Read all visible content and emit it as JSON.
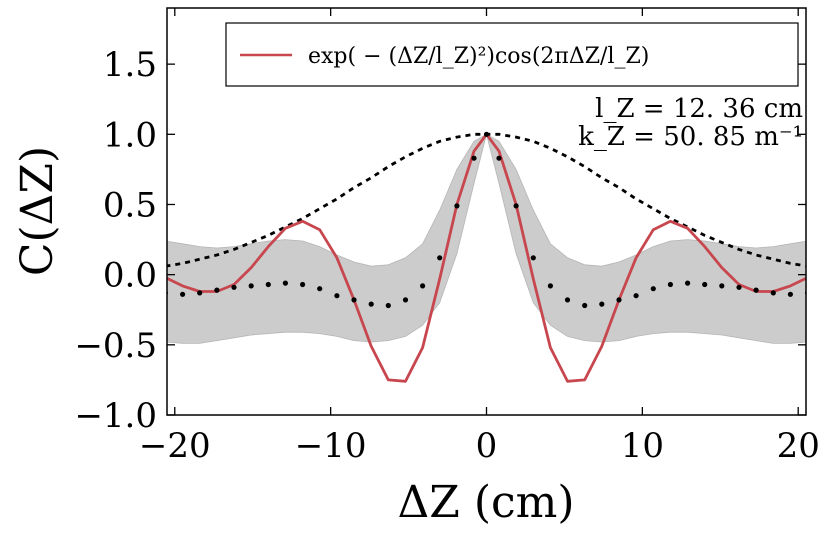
{
  "chart_data": {
    "type": "line",
    "title": "",
    "xlabel": "ΔZ (cm)",
    "ylabel": "C(ΔZ)",
    "xlim": [
      -20.5,
      20.5
    ],
    "ylim": [
      -1.0,
      1.9
    ],
    "xticks": [
      -20,
      -10,
      0,
      10,
      20
    ],
    "xtick_labels": [
      "−20",
      "−10",
      "0",
      "10",
      "20"
    ],
    "yticks": [
      -1.0,
      -0.5,
      0.0,
      0.5,
      1.0,
      1.5
    ],
    "ytick_labels": [
      "−1.0",
      "−0.5",
      "0.0",
      "0.5",
      "1.0",
      "1.5"
    ],
    "grid": false,
    "legend_position": "top-right",
    "annotations": [
      "l_Z = 12. 36 cm",
      "k_Z = 50. 85 m⁻¹"
    ],
    "colors": {
      "model": "#c8474f",
      "band": "#cccccc",
      "data_points": "#000000",
      "envelope": "#000000"
    },
    "series": [
      {
        "name": "exp( − (ΔZ/l_Z)²)cos(2πΔZ/l_Z)",
        "style": "solid",
        "x": [
          -20.6,
          -19.5,
          -18.4,
          -17.3,
          -16.2,
          -15.1,
          -14.0,
          -12.9,
          -11.8,
          -10.7,
          -9.6,
          -8.5,
          -7.4,
          -6.3,
          -5.2,
          -4.1,
          -3.0,
          -1.9,
          -0.8,
          0.0,
          0.8,
          1.9,
          3.0,
          4.1,
          5.2,
          6.3,
          7.4,
          8.5,
          9.6,
          10.7,
          11.8,
          12.9,
          14.0,
          15.1,
          16.2,
          17.3,
          18.4,
          19.5,
          20.6
        ],
        "y": [
          -0.02,
          -0.08,
          -0.12,
          -0.12,
          -0.07,
          0.05,
          0.2,
          0.33,
          0.38,
          0.32,
          0.12,
          -0.18,
          -0.51,
          -0.75,
          -0.76,
          -0.52,
          -0.03,
          0.5,
          0.88,
          1.0,
          0.88,
          0.5,
          -0.03,
          -0.52,
          -0.76,
          -0.75,
          -0.51,
          -0.18,
          0.12,
          0.32,
          0.38,
          0.33,
          0.2,
          0.05,
          -0.07,
          -0.12,
          -0.12,
          -0.08,
          -0.02
        ]
      },
      {
        "name": "",
        "style": "dotted-markers",
        "x": [
          -20.6,
          -19.5,
          -18.4,
          -17.3,
          -16.2,
          -15.1,
          -14.0,
          -12.9,
          -11.8,
          -10.7,
          -9.6,
          -8.5,
          -7.4,
          -6.3,
          -5.2,
          -4.1,
          -3.0,
          -1.9,
          -0.8,
          0.0,
          0.8,
          1.9,
          3.0,
          4.1,
          5.2,
          6.3,
          7.4,
          8.5,
          9.6,
          10.7,
          11.8,
          12.9,
          14.0,
          15.1,
          16.2,
          17.3,
          18.4,
          19.5,
          20.6
        ],
        "y": [
          -0.13,
          -0.14,
          -0.13,
          -0.11,
          -0.09,
          -0.08,
          -0.07,
          -0.06,
          -0.07,
          -0.1,
          -0.15,
          -0.18,
          -0.21,
          -0.22,
          -0.18,
          -0.08,
          0.12,
          0.49,
          0.83,
          1.0,
          0.83,
          0.49,
          0.12,
          -0.08,
          -0.18,
          -0.22,
          -0.21,
          -0.18,
          -0.15,
          -0.1,
          -0.07,
          -0.06,
          -0.07,
          -0.08,
          -0.09,
          -0.11,
          -0.13,
          -0.14,
          -0.13
        ]
      },
      {
        "name": "",
        "style": "dashed",
        "x": [
          -20.6,
          -19.5,
          -18.4,
          -17.3,
          -16.2,
          -15.1,
          -14.0,
          -12.9,
          -11.8,
          -10.7,
          -9.6,
          -8.5,
          -7.4,
          -6.3,
          -5.2,
          -4.1,
          -3.0,
          -1.9,
          -0.8,
          0.0,
          0.8,
          1.9,
          3.0,
          4.1,
          5.2,
          6.3,
          7.4,
          8.5,
          9.6,
          10.7,
          11.8,
          12.9,
          14.0,
          15.1,
          16.2,
          17.3,
          18.4,
          19.5,
          20.6
        ],
        "y": [
          0.06,
          0.08,
          0.11,
          0.14,
          0.18,
          0.23,
          0.28,
          0.34,
          0.4,
          0.47,
          0.54,
          0.62,
          0.69,
          0.77,
          0.84,
          0.9,
          0.95,
          0.98,
          1.0,
          1.0,
          1.0,
          0.98,
          0.95,
          0.9,
          0.84,
          0.77,
          0.69,
          0.62,
          0.54,
          0.47,
          0.4,
          0.34,
          0.28,
          0.23,
          0.18,
          0.14,
          0.11,
          0.08,
          0.06
        ]
      }
    ],
    "band": {
      "x": [
        -20.6,
        -19.5,
        -18.4,
        -17.3,
        -16.2,
        -15.1,
        -14.0,
        -12.9,
        -11.8,
        -10.7,
        -9.6,
        -8.5,
        -7.4,
        -6.3,
        -5.2,
        -4.1,
        -3.0,
        -1.9,
        -0.8,
        0.0,
        0.8,
        1.9,
        3.0,
        4.1,
        5.2,
        6.3,
        7.4,
        8.5,
        9.6,
        10.7,
        11.8,
        12.9,
        14.0,
        15.1,
        16.2,
        17.3,
        18.4,
        19.5,
        20.6
      ],
      "upper": [
        0.24,
        0.22,
        0.2,
        0.19,
        0.2,
        0.22,
        0.24,
        0.25,
        0.24,
        0.2,
        0.14,
        0.09,
        0.06,
        0.07,
        0.12,
        0.22,
        0.46,
        0.75,
        0.95,
        1.0,
        0.95,
        0.75,
        0.46,
        0.22,
        0.12,
        0.07,
        0.06,
        0.09,
        0.14,
        0.2,
        0.24,
        0.25,
        0.24,
        0.22,
        0.2,
        0.19,
        0.2,
        0.22,
        0.24
      ],
      "lower": [
        -0.48,
        -0.49,
        -0.49,
        -0.47,
        -0.45,
        -0.43,
        -0.42,
        -0.41,
        -0.41,
        -0.42,
        -0.44,
        -0.47,
        -0.48,
        -0.47,
        -0.44,
        -0.36,
        -0.2,
        0.15,
        0.65,
        1.0,
        0.65,
        0.15,
        -0.2,
        -0.36,
        -0.44,
        -0.47,
        -0.48,
        -0.47,
        -0.44,
        -0.42,
        -0.41,
        -0.41,
        -0.42,
        -0.43,
        -0.45,
        -0.47,
        -0.49,
        -0.49,
        -0.48
      ]
    }
  }
}
